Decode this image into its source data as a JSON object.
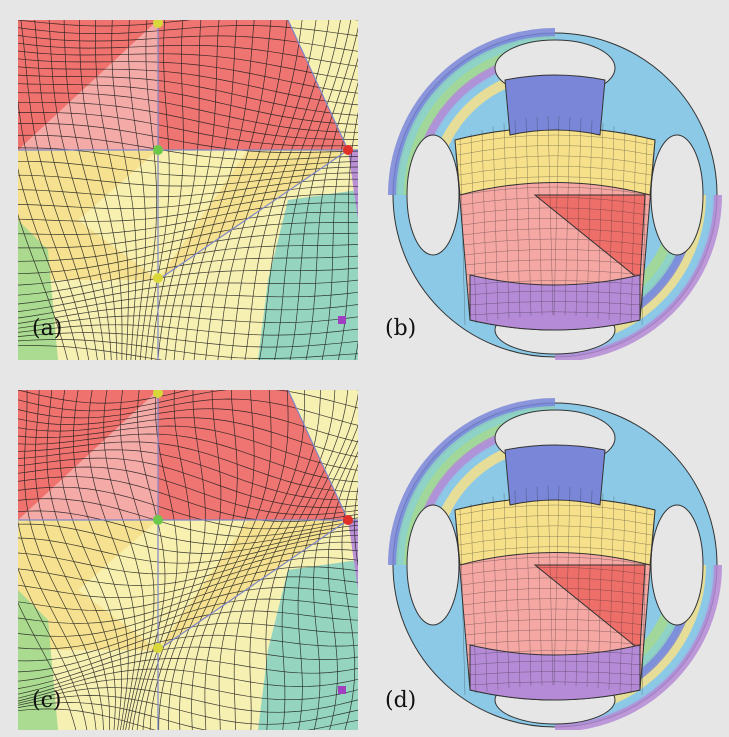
{
  "figure": {
    "panels": [
      {
        "id": "a",
        "label": "(a)"
      },
      {
        "id": "b",
        "label": "(b)"
      },
      {
        "id": "c",
        "label": "(c)"
      },
      {
        "id": "d",
        "label": "(d)"
      }
    ],
    "colors": {
      "background": "#e6e6e6",
      "red": "#ee6f6a",
      "pink": "#f4a7a3",
      "yellow": "#f6e08a",
      "pale_yellow": "#f8f0b0",
      "teal": "#8fd3c0",
      "green": "#a6d98e",
      "purple": "#b58ad6",
      "blue": "#7a86d8",
      "cyan": "#8cc9e6"
    }
  }
}
